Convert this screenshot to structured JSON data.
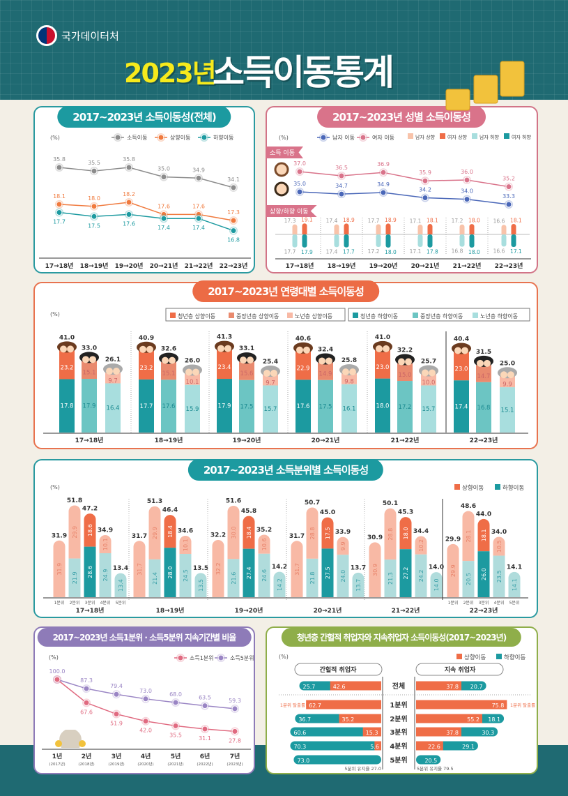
{
  "header": {
    "org": "국가데이터처",
    "year_title": "2023년",
    "title": "소득이동통계"
  },
  "unit": "(%)",
  "chart_data": [
    {
      "id": "overall",
      "type": "line",
      "title": "2017~2023년 소득이동성(전체)",
      "categories": [
        "17→18년",
        "18→19년",
        "19→20년",
        "20→21년",
        "21→22년",
        "22→23년"
      ],
      "series": [
        {
          "name": "소득이동",
          "values": [
            35.8,
            35.5,
            35.8,
            35.0,
            34.9,
            34.1
          ],
          "color": "#8c8c8c"
        },
        {
          "name": "상향이동",
          "values": [
            18.1,
            18.0,
            18.2,
            17.6,
            17.6,
            17.3
          ],
          "color": "#f07a3e"
        },
        {
          "name": "하향이동",
          "values": [
            17.7,
            17.5,
            17.6,
            17.4,
            17.4,
            16.8
          ],
          "color": "#1c9aa0"
        }
      ]
    },
    {
      "id": "gender",
      "type": "line+bar",
      "title": "2017~2023년 성별  소득이동성",
      "section_labels": [
        "소득 이동",
        "상향/하향 이동"
      ],
      "categories": [
        "17→18년",
        "18→19년",
        "19→20년",
        "20→21년",
        "21→22년",
        "22→23년"
      ],
      "series": [
        {
          "name": "남자 이동",
          "values": [
            35.0,
            34.7,
            34.9,
            34.2,
            34.0,
            33.3
          ],
          "color": "#4a67b8"
        },
        {
          "name": "여자 이동",
          "values": [
            37.0,
            36.5,
            36.9,
            35.9,
            36.0,
            35.2
          ],
          "color": "#d9738a"
        },
        {
          "name": "남자 상향",
          "values": [
            17.3,
            17.4,
            17.7,
            17.1,
            17.2,
            16.6
          ],
          "color": "#f8c3aa"
        },
        {
          "name": "여자 상향",
          "values": [
            19.1,
            18.9,
            18.9,
            18.1,
            18.0,
            18.1
          ],
          "color": "#ef6d47"
        },
        {
          "name": "남자 하향",
          "values": [
            17.7,
            17.4,
            17.2,
            17.1,
            16.8,
            16.6
          ],
          "color": "#a8dede"
        },
        {
          "name": "여자 하향",
          "values": [
            17.9,
            17.7,
            18.0,
            17.8,
            18.0,
            17.1
          ],
          "color": "#1c9aa0"
        }
      ]
    },
    {
      "id": "age",
      "type": "bar",
      "title": "2017~2023년 연령대별 소득이동성",
      "categories": [
        "17→18년",
        "18→19년",
        "19→20년",
        "20→21년",
        "21→22년",
        "22→23년"
      ],
      "series": [
        {
          "name": "청년층 상향이동",
          "values": [
            23.2,
            23.2,
            23.4,
            22.9,
            23.0,
            23.0
          ],
          "color": "#ef6d47"
        },
        {
          "name": "중장년층 상향이동",
          "values": [
            15.1,
            15.1,
            15.6,
            14.9,
            15.0,
            14.7
          ],
          "color": "#e98a6e"
        },
        {
          "name": "노년층 상향이동",
          "values": [
            9.7,
            10.1,
            9.7,
            9.8,
            10.0,
            9.9
          ],
          "color": "#f8b9a5"
        },
        {
          "name": "청년층 하향이동",
          "values": [
            17.8,
            17.7,
            17.9,
            17.6,
            18.0,
            17.4
          ],
          "color": "#1c9aa0"
        },
        {
          "name": "중장년층 하향이동",
          "values": [
            17.9,
            17.6,
            17.5,
            17.5,
            17.2,
            16.8
          ],
          "color": "#6cc5c3"
        },
        {
          "name": "노년층 하향이동",
          "values": [
            16.4,
            15.9,
            15.7,
            16.1,
            15.7,
            15.1
          ],
          "color": "#a8dede"
        }
      ],
      "totals": [
        [
          41.0,
          33.0,
          26.1
        ],
        [
          40.9,
          32.6,
          26.0
        ],
        [
          41.3,
          33.1,
          25.4
        ],
        [
          40.6,
          32.4,
          25.8
        ],
        [
          41.0,
          32.2,
          25.7
        ],
        [
          40.4,
          31.5,
          25.0
        ]
      ]
    },
    {
      "id": "quintile",
      "type": "bar",
      "title": "2017~2023년 소득분위별 소득이동성",
      "categories": [
        "17→18년",
        "18→19년",
        "19→20년",
        "20→21년",
        "21→22년",
        "22→23년"
      ],
      "quintiles": [
        "1분위",
        "2분위",
        "3분위",
        "4분위",
        "5분위"
      ],
      "legend": [
        "상향이동",
        "하향이동"
      ],
      "totals": [
        [
          31.9,
          51.8,
          47.2,
          34.9,
          13.4
        ],
        [
          31.7,
          51.3,
          46.4,
          34.6,
          13.5
        ],
        [
          32.2,
          51.6,
          45.8,
          35.2,
          14.2
        ],
        [
          31.7,
          50.7,
          45.0,
          33.9,
          13.7
        ],
        [
          30.9,
          50.1,
          45.3,
          34.4,
          14.0
        ],
        [
          29.9,
          48.6,
          44.0,
          34.0,
          14.1
        ]
      ],
      "up": [
        [
          31.9,
          29.9,
          18.6,
          10.1,
          null
        ],
        [
          31.7,
          29.9,
          18.4,
          10.1,
          null
        ],
        [
          32.2,
          30.0,
          18.4,
          10.6,
          null
        ],
        [
          31.7,
          28.8,
          17.5,
          9.9,
          null
        ],
        [
          30.9,
          28.8,
          18.0,
          10.2,
          null
        ],
        [
          29.9,
          28.1,
          18.1,
          10.5,
          null
        ]
      ],
      "down": [
        [
          null,
          21.9,
          28.6,
          24.9,
          13.4
        ],
        [
          null,
          21.4,
          28.0,
          24.5,
          13.5
        ],
        [
          null,
          21.6,
          27.4,
          24.6,
          14.2
        ],
        [
          null,
          21.8,
          27.5,
          24.0,
          13.7
        ],
        [
          null,
          21.3,
          27.2,
          24.2,
          14.0
        ],
        [
          null,
          20.5,
          26.0,
          23.5,
          14.1
        ]
      ],
      "colors": {
        "up": "#ef6d47",
        "down": "#1c9aa0",
        "up_light": "#f8b9a5",
        "down_light": "#b0dcdc"
      }
    },
    {
      "id": "persistence",
      "type": "line",
      "title": "2017~2023년  소득1분위 · 소득5분위 지속기간별 비율",
      "categories": [
        "1년",
        "2년",
        "3년",
        "4년",
        "5년",
        "6년",
        "7년"
      ],
      "sublabels": [
        "(2017년)",
        "(2018년)",
        "(2019년)",
        "(2020년)",
        "(2021년)",
        "(2022년)",
        "(2023년)"
      ],
      "series": [
        {
          "name": "소득1분위",
          "values": [
            100.0,
            67.6,
            51.9,
            42.0,
            35.5,
            31.1,
            27.8
          ],
          "color": "#e06a80"
        },
        {
          "name": "소득5분위",
          "values": [
            100.0,
            87.3,
            79.4,
            73.0,
            68.0,
            63.5,
            59.3
          ],
          "color": "#9a85c4"
        }
      ]
    },
    {
      "id": "youth",
      "type": "bar-horizontal",
      "title": "청년층 간헐적 취업자와 지속취업자 소득이동성(2017~2023년)",
      "legend": [
        "상향이동",
        "하향이동"
      ],
      "rows": [
        "전체",
        "1분위",
        "2분위",
        "3분위",
        "4분위",
        "5분위"
      ],
      "groups": [
        {
          "name": "간헐적 취업자",
          "up": [
            42.6,
            62.7,
            35.2,
            15.3,
            5.6,
            null
          ],
          "down": [
            25.7,
            null,
            36.7,
            60.6,
            70.3,
            73.0
          ]
        },
        {
          "name": "지속 취업자",
          "up": [
            37.8,
            75.8,
            55.2,
            37.8,
            22.6,
            null
          ],
          "down": [
            20.7,
            null,
            18.1,
            30.3,
            29.1,
            20.5
          ]
        }
      ],
      "notes": {
        "q1_exit": "1분위 탈출률",
        "q5_left": "5분위 유지율 27.0",
        "q5_right": "5분위 유지율 79.5"
      }
    }
  ]
}
